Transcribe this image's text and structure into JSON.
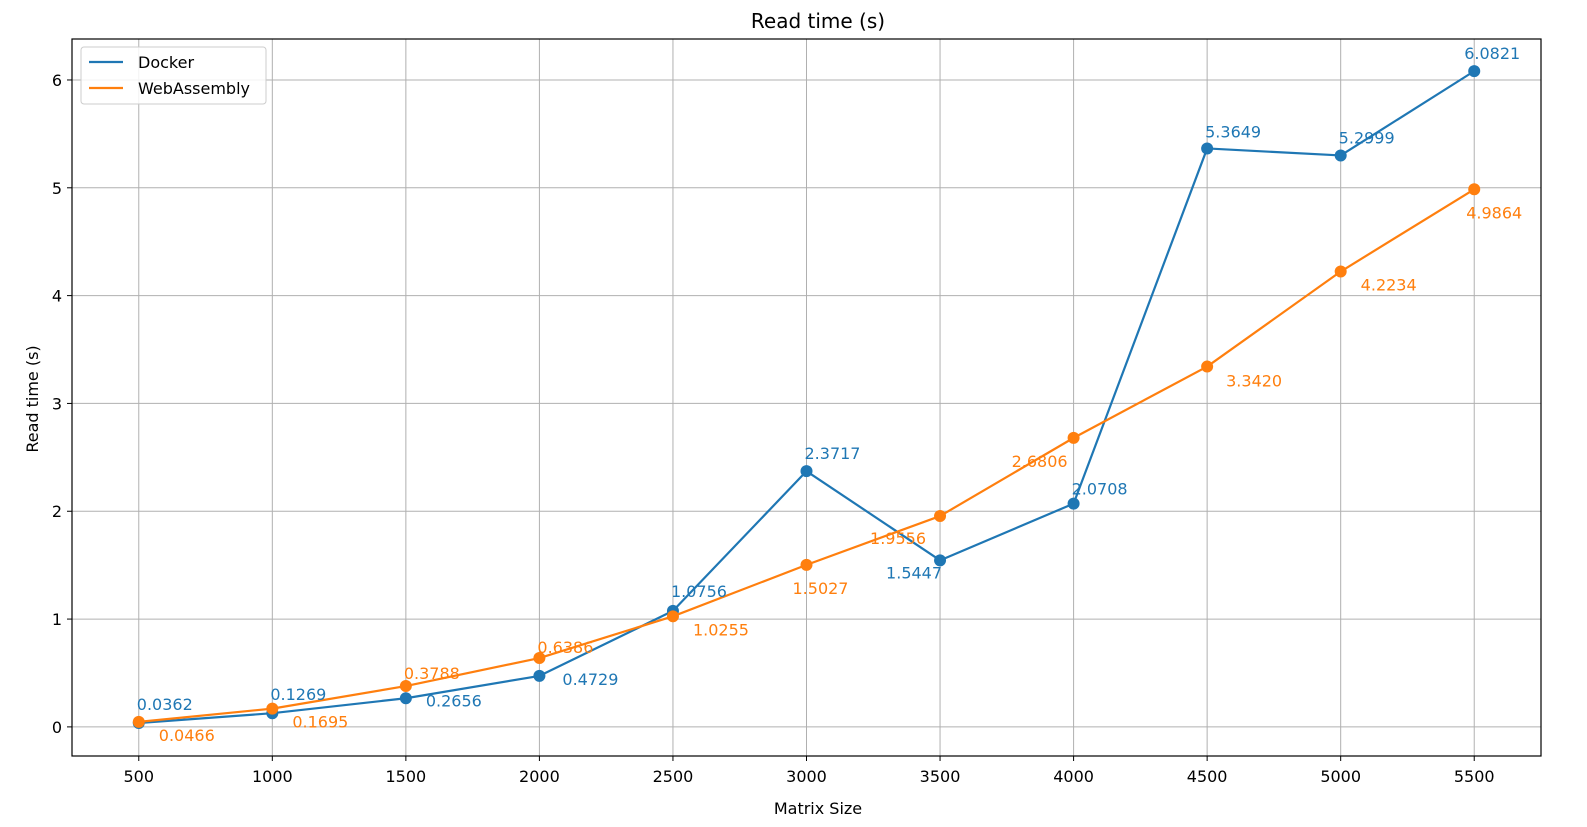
{
  "chart_data": {
    "type": "line",
    "title": "Read time (s)",
    "xlabel": "Matrix Size",
    "ylabel": "Read time (s)",
    "x": [
      500,
      1000,
      1500,
      2000,
      2500,
      3000,
      3500,
      4000,
      4500,
      5000,
      5500
    ],
    "x_ticks": [
      "500",
      "1000",
      "1500",
      "2000",
      "2500",
      "3000",
      "3500",
      "4000",
      "4500",
      "5000",
      "5500"
    ],
    "y_ticks": [
      "0",
      "1",
      "2",
      "3",
      "4",
      "5",
      "6"
    ],
    "xlim": [
      250,
      5750
    ],
    "ylim": [
      -0.27,
      6.38
    ],
    "grid": true,
    "legend_position": "upper-left",
    "series": [
      {
        "name": "Docker",
        "color": "#1f77b4",
        "values": [
          0.0362,
          0.1269,
          0.2656,
          0.4729,
          1.0756,
          2.3717,
          1.5447,
          2.0708,
          5.3649,
          5.2999,
          6.0821
        ],
        "labels": [
          "0.0362",
          "0.1269",
          "0.2656",
          "0.4729",
          "1.0756",
          "2.3717",
          "1.5447",
          "2.0708",
          "5.3649",
          "5.2999",
          "6.0821"
        ]
      },
      {
        "name": "WebAssembly",
        "color": "#ff7f0e",
        "values": [
          0.0466,
          0.1695,
          0.3788,
          0.6386,
          1.0255,
          1.5027,
          1.9556,
          2.6806,
          3.342,
          4.2234,
          4.9864
        ],
        "labels": [
          "0.0466",
          "0.1695",
          "0.3788",
          "0.6386",
          "1.0255",
          "1.5027",
          "1.9556",
          "2.6806",
          "3.3420",
          "4.2234",
          "4.9864"
        ]
      }
    ]
  }
}
